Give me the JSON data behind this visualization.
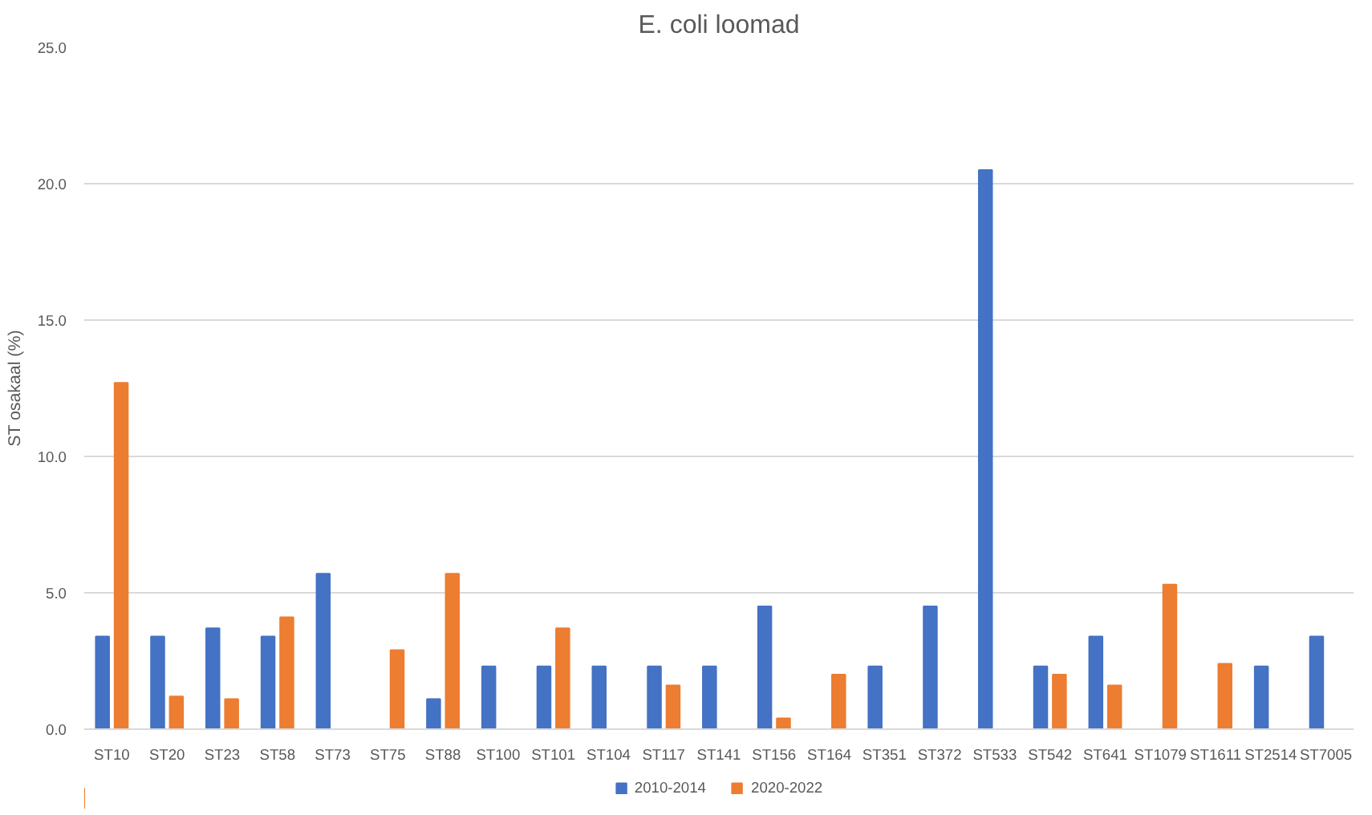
{
  "chart_data": {
    "type": "bar",
    "title": "E. coli loomad",
    "ylabel": "ST osakaal (%)",
    "categories": [
      "ST10",
      "ST20",
      "ST23",
      "ST58",
      "ST73",
      "ST75",
      "ST88",
      "ST100",
      "ST101",
      "ST104",
      "ST117",
      "ST141",
      "ST156",
      "ST164",
      "ST351",
      "ST372",
      "ST533",
      "ST542",
      "ST641",
      "ST1079",
      "ST1611",
      "ST2514",
      "ST7005"
    ],
    "series": [
      {
        "name": "2010-2014",
        "color": "#4472c4",
        "values": [
          3.4,
          3.4,
          3.7,
          3.4,
          5.7,
          null,
          1.1,
          2.3,
          2.3,
          2.3,
          2.3,
          2.3,
          4.5,
          null,
          2.3,
          4.5,
          20.5,
          2.3,
          3.4,
          null,
          null,
          2.3,
          3.4
        ]
      },
      {
        "name": "2020-2022",
        "color": "#ed7d31",
        "values": [
          12.7,
          1.2,
          1.1,
          4.1,
          null,
          2.9,
          5.7,
          null,
          3.7,
          null,
          1.6,
          null,
          0.4,
          2.0,
          null,
          null,
          null,
          2.0,
          1.6,
          5.3,
          2.4,
          null,
          null
        ]
      }
    ],
    "ylim": [
      0,
      25
    ],
    "yticks": [
      {
        "value": 0,
        "label": "0.0"
      },
      {
        "value": 5,
        "label": "5.0"
      },
      {
        "value": 10,
        "label": "10.0"
      },
      {
        "value": 15,
        "label": "15.0"
      },
      {
        "value": 20,
        "label": "20.0"
      },
      {
        "value": 25,
        "label": "25.0"
      }
    ],
    "grid": "y",
    "legend": "bottom"
  }
}
